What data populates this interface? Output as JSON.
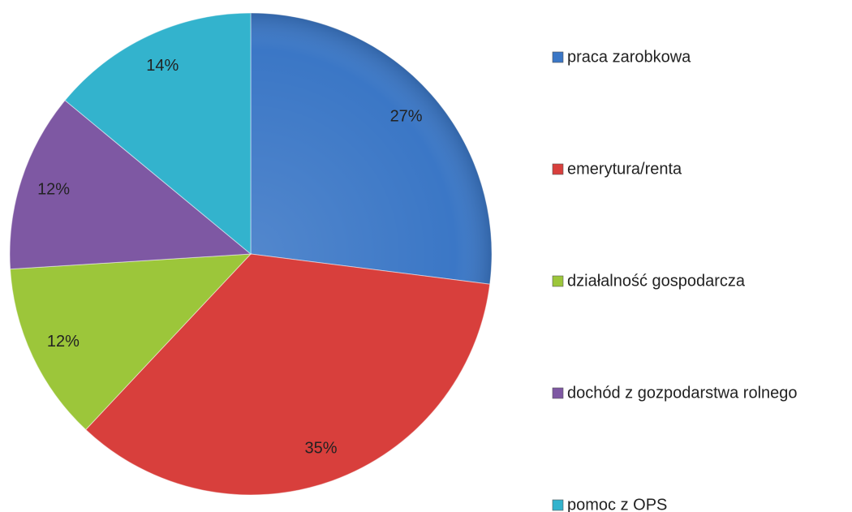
{
  "chart_data": {
    "type": "pie",
    "categories": [
      "praca zarobkowa",
      "emerytura/renta",
      "działalność gospodarcza",
      "dochód z gozpodarstwa rolnego",
      "pomoc z OPS"
    ],
    "values": [
      27,
      35,
      12,
      12,
      14
    ],
    "value_labels": [
      "27%",
      "35%",
      "12%",
      "12%",
      "14%"
    ],
    "colors": [
      "#3b77c6",
      "#d83f3c",
      "#9cc63a",
      "#7e58a3",
      "#33b3cd"
    ],
    "legend": "right"
  }
}
